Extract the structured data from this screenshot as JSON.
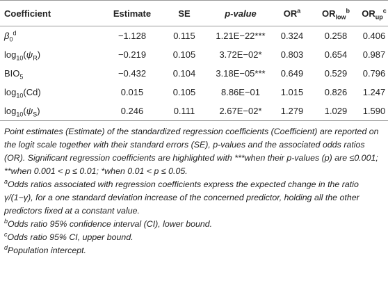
{
  "table": {
    "header": [
      [
        {
          "text": "Coefficient"
        }
      ],
      [
        {
          "text": "Estimate"
        }
      ],
      [
        {
          "text": "SE"
        }
      ],
      [
        {
          "text": "p-value",
          "style": "italic"
        }
      ],
      [
        {
          "text": "OR"
        },
        {
          "text": "a",
          "style": "sup"
        }
      ],
      [
        {
          "text": "OR"
        },
        {
          "text": "low",
          "style": "sub"
        },
        {
          "text": "b",
          "style": "sup"
        }
      ],
      [
        {
          "text": "OR"
        },
        {
          "text": "up",
          "style": "sub"
        },
        {
          "text": "c",
          "style": "sup"
        }
      ]
    ],
    "rows": [
      [
        [
          {
            "text": "β",
            "style": "italic"
          },
          {
            "text": "0",
            "style": "sub"
          },
          {
            "text": "d",
            "style": "sup"
          }
        ],
        "−1.128",
        "0.115",
        "1.21E−22***",
        "0.324",
        "0.258",
        "0.406"
      ],
      [
        [
          {
            "text": "log"
          },
          {
            "text": "10",
            "style": "sub"
          },
          {
            "text": "("
          },
          {
            "text": "ψ",
            "style": "italic"
          },
          {
            "text": "R",
            "style": "sub"
          },
          {
            "text": ")"
          }
        ],
        "−0.219",
        "0.105",
        "3.72E−02*",
        "0.803",
        "0.654",
        "0.987"
      ],
      [
        [
          {
            "text": "BIO"
          },
          {
            "text": "5",
            "style": "sub"
          }
        ],
        "−0.432",
        "0.104",
        "3.18E−05***",
        "0.649",
        "0.529",
        "0.796"
      ],
      [
        [
          {
            "text": "log"
          },
          {
            "text": "10",
            "style": "sub"
          },
          {
            "text": "(Cd)"
          }
        ],
        "0.015",
        "0.105",
        "8.86E−01",
        "1.015",
        "0.826",
        "1.247"
      ],
      [
        [
          {
            "text": "log"
          },
          {
            "text": "10",
            "style": "sub"
          },
          {
            "text": "("
          },
          {
            "text": "ψ",
            "style": "italic"
          },
          {
            "text": "S",
            "style": "sub"
          },
          {
            "text": ")"
          }
        ],
        "0.246",
        "0.111",
        "2.67E−02*",
        "1.279",
        "1.029",
        "1.590"
      ]
    ]
  },
  "notes": [
    {
      "text": "Point estimates (Estimate) of the standardized regression coefficients (Coefficient) are reported on the logit scale together with their standard errors (SE), p-values and the associated odds ratios (OR). Significant regression coefficients are highlighted with ***when their p-values (p) are ≤0.001; **when 0.001 < p ≤ 0.01; *when 0.01 < p ≤ 0.05."
    },
    {
      "mark": "a",
      "text": "Odds ratios associated with regression coefficients express the expected change in the ratio γ/(1−γ), for a one standard deviation increase of the concerned predictor, holding all the other predictors fixed at a constant value."
    },
    {
      "mark": "b",
      "text": "Odds ratio 95% confidence interval (CI), lower bound."
    },
    {
      "mark": "c",
      "text": "Odds ratio 95% CI, upper bound."
    },
    {
      "mark": "d",
      "text": "Population intercept."
    }
  ]
}
